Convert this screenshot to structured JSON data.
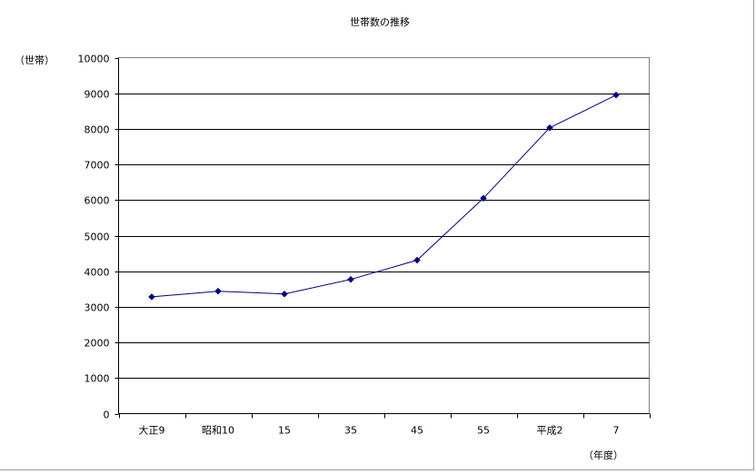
{
  "chart_data": {
    "type": "line",
    "title": "世帯数の推移",
    "ylabel": "（世帯）",
    "xlabel": "（年度）",
    "categories": [
      "大正9",
      "昭和10",
      "15",
      "35",
      "45",
      "55",
      "平成2",
      "7"
    ],
    "series": [
      {
        "values": [
          3280,
          3440,
          3360,
          3770,
          4310,
          6050,
          8030,
          8950
        ],
        "color": "#000080"
      }
    ],
    "ylim": [
      0,
      10000
    ],
    "yticks": [
      0,
      1000,
      2000,
      3000,
      4000,
      5000,
      6000,
      7000,
      8000,
      9000,
      10000
    ],
    "grid": true
  }
}
